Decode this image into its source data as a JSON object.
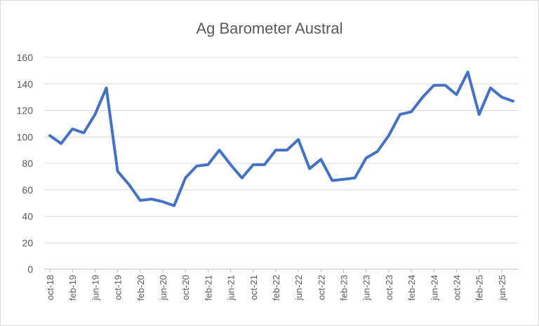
{
  "chart_data": {
    "type": "line",
    "title": "Ag Barometer Austral",
    "xlabel": "",
    "ylabel": "",
    "ylim": [
      0,
      160
    ],
    "yticks": [
      0,
      20,
      40,
      60,
      80,
      100,
      120,
      140,
      160
    ],
    "grid": true,
    "legend": "none",
    "x": [
      "oct-18",
      "dec-18",
      "feb-19",
      "apr-19",
      "jun-19",
      "aug-19",
      "oct-19",
      "dec-19",
      "feb-20",
      "apr-20",
      "jun-20",
      "aug-20",
      "oct-20",
      "dec-20",
      "feb-21",
      "apr-21",
      "jun-21",
      "aug-21",
      "oct-21",
      "dec-21",
      "feb-22",
      "apr-22",
      "jun-22",
      "aug-22",
      "oct-22",
      "dec-22",
      "feb-23",
      "apr-23",
      "jun-23",
      "aug-23",
      "oct-23",
      "dec-23",
      "feb-24",
      "apr-24",
      "jun-24",
      "aug-24",
      "oct-24",
      "dec-24",
      "feb-25",
      "apr-25",
      "jun-25",
      "aug-25"
    ],
    "xtick_labels": [
      "oct-18",
      "feb-19",
      "jun-19",
      "oct-19",
      "feb-20",
      "jun-20",
      "oct-20",
      "feb-21",
      "jun-21",
      "oct-21",
      "feb-22",
      "jun-22",
      "oct-22",
      "feb-23",
      "jun-23",
      "oct-23",
      "feb-24",
      "jun-24",
      "oct-24",
      "feb-25",
      "jun-25"
    ],
    "series": [
      {
        "color": "#4472c4",
        "values": [
          101,
          95,
          106,
          103,
          117,
          137,
          74,
          64,
          52,
          53,
          51,
          48,
          69,
          78,
          79,
          90,
          79,
          69,
          79,
          79,
          90,
          90,
          98,
          76,
          83,
          67,
          68,
          69,
          84,
          89,
          101,
          117,
          119,
          130,
          139,
          139,
          132,
          149,
          117,
          137,
          130,
          127
        ]
      }
    ]
  }
}
